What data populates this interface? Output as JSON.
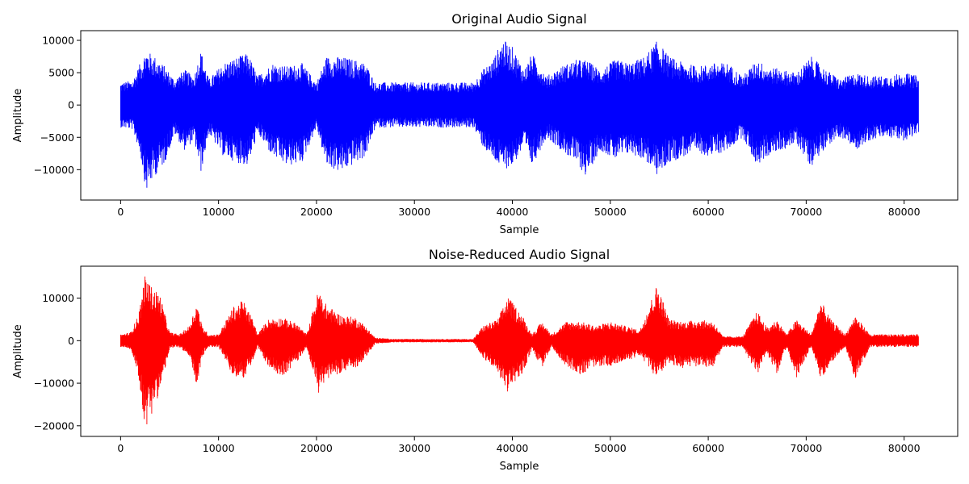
{
  "chart_data": [
    {
      "type": "line",
      "title": "Original Audio Signal",
      "xlabel": "Sample",
      "ylabel": "Amplitude",
      "color": "#0000ff",
      "xlim": [
        -4070,
        85470
      ],
      "ylim": [
        -14700,
        11500
      ],
      "xticks": [
        0,
        10000,
        20000,
        30000,
        40000,
        50000,
        60000,
        70000,
        80000
      ],
      "yticks": [
        -10000,
        -5000,
        0,
        5000,
        10000
      ],
      "xticklabels": [
        "0",
        "10000",
        "20000",
        "30000",
        "40000",
        "50000",
        "60000",
        "70000",
        "80000"
      ],
      "yticklabels": [
        "−10000",
        "−5000",
        "0",
        "5000",
        "10000"
      ],
      "grid": false,
      "envelope": {
        "x": [
          0,
          1200,
          2000,
          2600,
          3500,
          4500,
          5500,
          6500,
          7500,
          8200,
          9000,
          10500,
          12000,
          13000,
          14000,
          15500,
          17000,
          18500,
          20000,
          21000,
          22500,
          24000,
          25000,
          26000,
          28000,
          30000,
          33000,
          36000,
          37000,
          38000,
          39000,
          40000,
          41200,
          42000,
          43500,
          45000,
          46500,
          47500,
          49000,
          50500,
          52000,
          53500,
          54800,
          56000,
          57500,
          59000,
          60500,
          62000,
          63500,
          65000,
          66000,
          67500,
          69000,
          70500,
          72000,
          73500,
          75000,
          76500,
          78000,
          80000,
          81500
        ],
        "upper": [
          3500,
          3800,
          6500,
          8500,
          7500,
          6000,
          4000,
          5500,
          4500,
          8500,
          4000,
          6500,
          7500,
          8000,
          4500,
          6500,
          6000,
          6500,
          3500,
          7500,
          7500,
          7000,
          6500,
          3500,
          3500,
          3500,
          3500,
          3500,
          5500,
          7000,
          10200,
          9000,
          5500,
          8000,
          4500,
          6000,
          7000,
          7000,
          5500,
          7000,
          6500,
          7500,
          10000,
          7500,
          6500,
          6000,
          6500,
          6500,
          4500,
          7000,
          6000,
          5500,
          5000,
          7500,
          5500,
          4000,
          5000,
          4500,
          4500,
          5000,
          4500
        ],
        "lower": [
          -3500,
          -3800,
          -7500,
          -13500,
          -11000,
          -9000,
          -4500,
          -7000,
          -5500,
          -10500,
          -4500,
          -8000,
          -9000,
          -9500,
          -4500,
          -8000,
          -9500,
          -9000,
          -3500,
          -9500,
          -10500,
          -9000,
          -8000,
          -3500,
          -3500,
          -3500,
          -3500,
          -3500,
          -6500,
          -8500,
          -10000,
          -9500,
          -6500,
          -9500,
          -5000,
          -7000,
          -9000,
          -11000,
          -7000,
          -8500,
          -7500,
          -8500,
          -11000,
          -9000,
          -8000,
          -7500,
          -8000,
          -7000,
          -5000,
          -9500,
          -8000,
          -7000,
          -6000,
          -9500,
          -6500,
          -5000,
          -7000,
          -5500,
          -5000,
          -5500,
          -4500
        ]
      }
    },
    {
      "type": "line",
      "title": "Noise-Reduced Audio Signal",
      "xlabel": "Sample",
      "ylabel": "Amplitude",
      "color": "#ff0000",
      "xlim": [
        -4070,
        85470
      ],
      "ylim": [
        -22500,
        17500
      ],
      "xticks": [
        0,
        10000,
        20000,
        30000,
        40000,
        50000,
        60000,
        70000,
        80000
      ],
      "yticks": [
        -20000,
        -10000,
        0,
        10000
      ],
      "xticklabels": [
        "0",
        "10000",
        "20000",
        "30000",
        "40000",
        "50000",
        "60000",
        "70000",
        "80000"
      ],
      "yticklabels": [
        "−20000",
        "−10000",
        "0",
        "10000"
      ],
      "grid": false,
      "envelope": {
        "x": [
          0,
          1000,
          1800,
          2500,
          3200,
          4000,
          5000,
          6000,
          7000,
          7800,
          8300,
          9000,
          10000,
          11500,
          12500,
          13500,
          14000,
          15000,
          16500,
          18000,
          19000,
          20200,
          21000,
          22500,
          24000,
          25000,
          26000,
          28000,
          31000,
          34000,
          36000,
          37000,
          38500,
          39500,
          41000,
          42000,
          43000,
          44000,
          45500,
          47000,
          48500,
          50000,
          51500,
          53000,
          54800,
          56000,
          57500,
          59000,
          60500,
          61500,
          62500,
          63500,
          65000,
          66000,
          67000,
          68000,
          69000,
          70500,
          71500,
          72500,
          74000,
          75000,
          76500,
          78000,
          80000,
          81500
        ],
        "upper": [
          1500,
          2000,
          6000,
          15500,
          12500,
          11000,
          2000,
          1500,
          3500,
          9000,
          3500,
          1500,
          1500,
          8000,
          9500,
          5000,
          1500,
          5000,
          5500,
          4000,
          1500,
          12000,
          8500,
          6000,
          5500,
          3500,
          700,
          400,
          400,
          400,
          400,
          3500,
          5000,
          10500,
          6000,
          1500,
          4500,
          1500,
          4500,
          4500,
          3500,
          4500,
          3500,
          2500,
          13500,
          5000,
          4500,
          5000,
          4500,
          1000,
          1000,
          1000,
          7000,
          3000,
          5000,
          1500,
          5000,
          1500,
          9500,
          5000,
          1500,
          6000,
          1500,
          1500,
          1500,
          1500
        ],
        "lower": [
          -1500,
          -2000,
          -8000,
          -21000,
          -17000,
          -12000,
          -2000,
          -1500,
          -4000,
          -11000,
          -4000,
          -1500,
          -1500,
          -8500,
          -9000,
          -5000,
          -1500,
          -6000,
          -8500,
          -5000,
          -1500,
          -12500,
          -9000,
          -7500,
          -6500,
          -4000,
          -700,
          -400,
          -400,
          -400,
          -400,
          -4000,
          -7500,
          -12000,
          -8000,
          -2000,
          -6500,
          -1500,
          -6000,
          -8000,
          -6000,
          -6000,
          -5000,
          -3500,
          -9000,
          -5500,
          -6500,
          -6000,
          -6500,
          -1500,
          -1500,
          -1500,
          -8000,
          -3000,
          -8000,
          -1500,
          -9000,
          -1500,
          -9000,
          -5500,
          -1500,
          -9000,
          -1500,
          -1500,
          -1500,
          -1500
        ]
      }
    }
  ]
}
